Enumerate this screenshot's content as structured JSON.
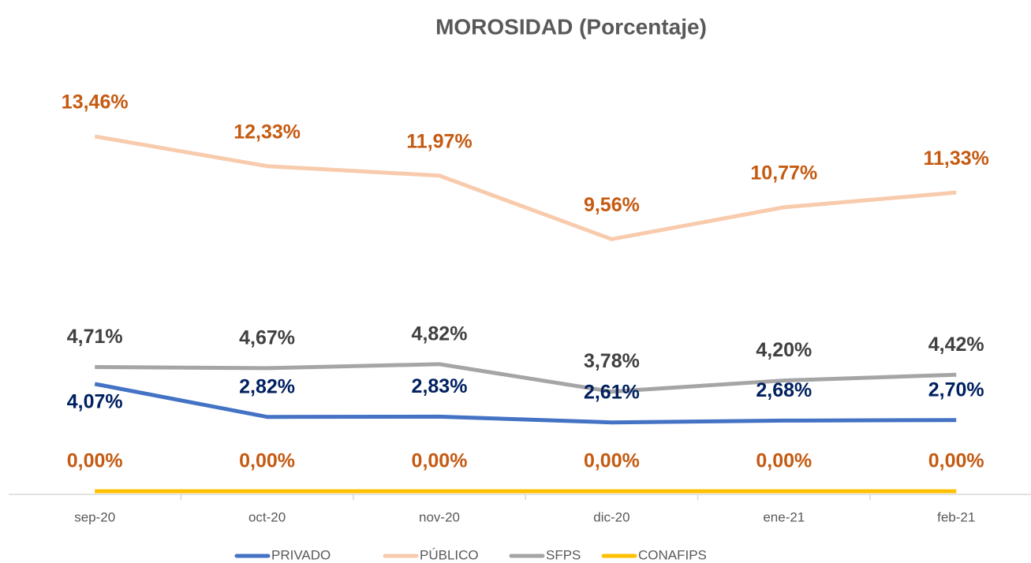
{
  "chart_data": {
    "type": "line",
    "title": "MOROSIDAD (Porcentaje)",
    "categories": [
      "sep-20",
      "oct-20",
      "nov-20",
      "dic-20",
      "ene-21",
      "feb-21"
    ],
    "ylim": [
      0,
      16
    ],
    "series": [
      {
        "name": "PRIVADO",
        "color": "#4472c4",
        "label_color": "#002060",
        "values": [
          4.07,
          2.82,
          2.83,
          2.61,
          2.68,
          2.7
        ],
        "value_labels": [
          "4,07%",
          "2,82%",
          "2,83%",
          "2,61%",
          "2,68%",
          "2,70%"
        ]
      },
      {
        "name": "PÚBLICO",
        "color": "#f8cbad",
        "label_color": "#c55a11",
        "values": [
          13.46,
          12.33,
          11.97,
          9.56,
          10.77,
          11.33
        ],
        "value_labels": [
          "13,46%",
          "12,33%",
          "11,97%",
          "9,56%",
          "10,77%",
          "11,33%"
        ]
      },
      {
        "name": "SFPS",
        "color": "#a5a5a5",
        "label_color": "#404040",
        "values": [
          4.71,
          4.67,
          4.82,
          3.78,
          4.2,
          4.42
        ],
        "value_labels": [
          "4,71%",
          "4,67%",
          "4,82%",
          "3,78%",
          "4,20%",
          "4,42%"
        ]
      },
      {
        "name": "CONAFIPS",
        "color": "#ffc000",
        "label_color": "#c55a11",
        "values": [
          0,
          0,
          0,
          0,
          0,
          0
        ],
        "value_labels": [
          "0,00%",
          "0,00%",
          "0,00%",
          "0,00%",
          "0,00%",
          "0,00%"
        ]
      }
    ],
    "legend": "bottom"
  }
}
